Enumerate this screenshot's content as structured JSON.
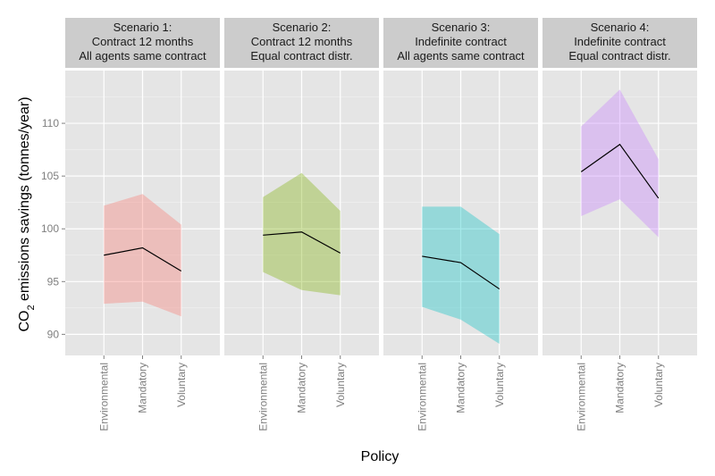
{
  "chart_data": {
    "type": "line",
    "xlabel": "Policy",
    "ylabel": {
      "prefix": "CO",
      "subscript": "2",
      "suffix": " emissions savings (tonnes/year)"
    },
    "categories": [
      "Environmental",
      "Mandatory",
      "Voluntary"
    ],
    "ylim": [
      88,
      115
    ],
    "yticks": [
      90,
      95,
      100,
      105,
      110
    ],
    "grid": true,
    "line_color": "#000000",
    "panels": [
      {
        "title": [
          "Scenario 1:",
          "Contract 12 months",
          "All agents same contract"
        ],
        "color": "#F8766D",
        "mean": [
          97.5,
          98.2,
          96.0
        ],
        "lower": [
          92.9,
          93.1,
          91.7
        ],
        "upper": [
          102.2,
          103.3,
          100.4
        ]
      },
      {
        "title": [
          "Scenario 2:",
          "Contract 12 months",
          "Equal contract distr."
        ],
        "color": "#7CAE00",
        "mean": [
          99.4,
          99.7,
          97.7
        ],
        "lower": [
          95.9,
          94.2,
          93.7
        ],
        "upper": [
          103.0,
          105.3,
          101.7
        ]
      },
      {
        "title": [
          "Scenario 3:",
          "Indefinite contract",
          "All agents same contract"
        ],
        "color": "#00BFC4",
        "mean": [
          97.4,
          96.8,
          94.3
        ],
        "lower": [
          92.6,
          91.4,
          89.1
        ],
        "upper": [
          102.1,
          102.1,
          99.5
        ]
      },
      {
        "title": [
          "Scenario 4:",
          "Indefinite contract",
          "Equal contract distr."
        ],
        "color": "#C77CFF",
        "mean": [
          105.4,
          108.0,
          102.9
        ],
        "lower": [
          101.2,
          102.8,
          99.2
        ],
        "upper": [
          109.7,
          113.2,
          106.6
        ]
      }
    ]
  }
}
